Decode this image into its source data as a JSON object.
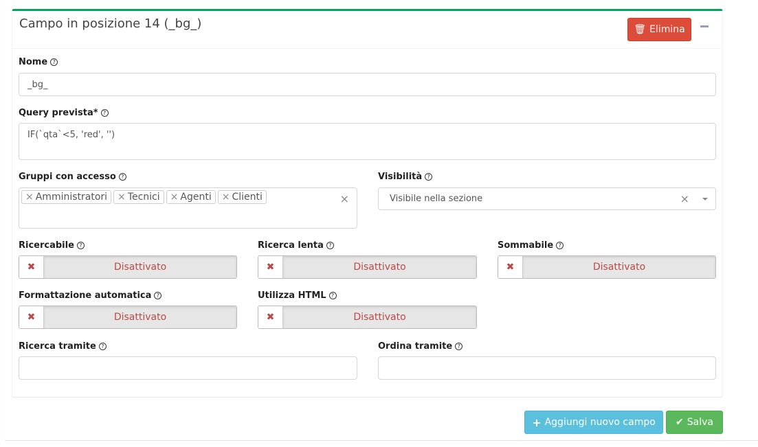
{
  "card": {
    "title": "Campo in posizione 14 (_bg_)",
    "delete_label": "Elimina",
    "accent": "#00a65a"
  },
  "fields": {
    "nome": {
      "label": "Nome",
      "value": "_bg_"
    },
    "query": {
      "label": "Query prevista*",
      "value": "IF(`qta`<5, 'red', '')"
    },
    "gruppi": {
      "label": "Gruppi con accesso",
      "tags": [
        "Amministratori",
        "Tecnici",
        "Agenti",
        "Clienti"
      ]
    },
    "visibilita": {
      "label": "Visibilità",
      "value": "Visibile nella sezione"
    },
    "ricercabile": {
      "label": "Ricercabile",
      "state": "Disattivato"
    },
    "ricerca_lenta": {
      "label": "Ricerca lenta",
      "state": "Disattivato"
    },
    "sommabile": {
      "label": "Sommabile",
      "state": "Disattivato"
    },
    "formattazione": {
      "label": "Formattazione automatica",
      "state": "Disattivato"
    },
    "html": {
      "label": "Utilizza HTML",
      "state": "Disattivato"
    },
    "ricerca_tramite": {
      "label": "Ricerca tramite",
      "value": ""
    },
    "ordina_tramite": {
      "label": "Ordina tramite",
      "value": ""
    }
  },
  "footer": {
    "add_label": "Aggiungi nuovo campo",
    "save_label": "Salva"
  }
}
